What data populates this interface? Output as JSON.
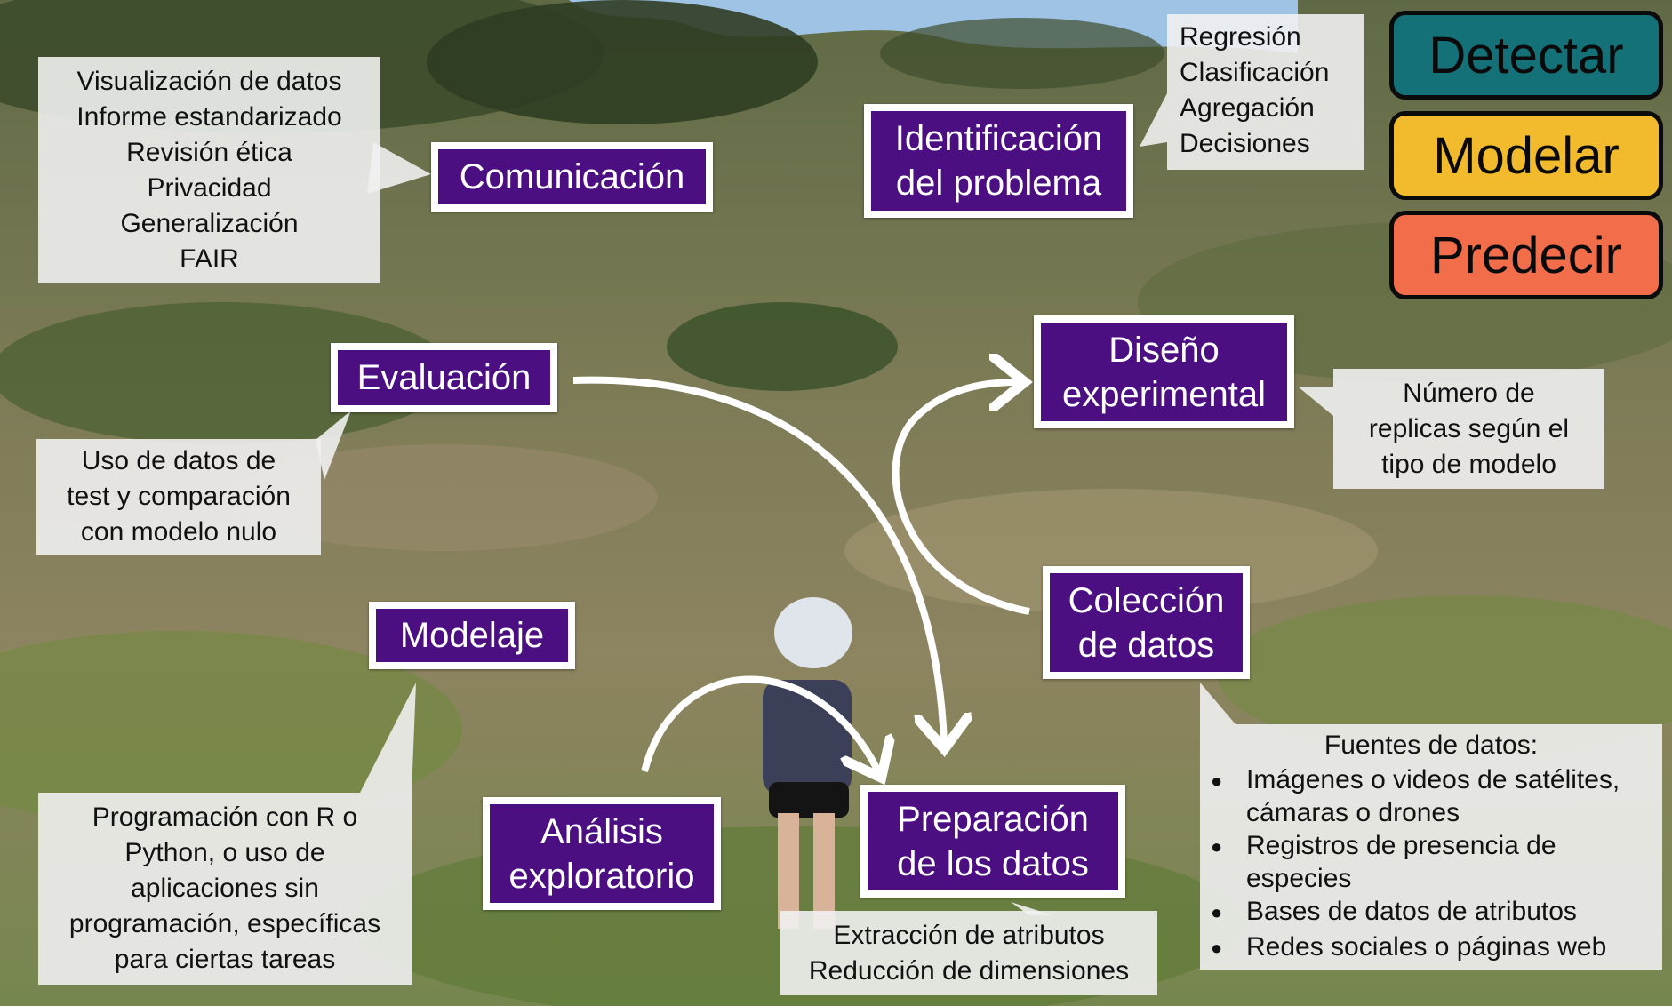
{
  "colors": {
    "step_bg": "#4b0f82",
    "step_border": "#ffffff",
    "note_bg": "#f0f0f0",
    "detect": "#137177",
    "model": "#f2bb2e",
    "predict": "#f26e4b"
  },
  "legend": {
    "detect": "Detectar",
    "model": "Modelar",
    "predict": "Predecir"
  },
  "steps": {
    "comunicacion": "Comunicación",
    "identificacion": "Identificación\ndel problema",
    "evaluacion": "Evaluación",
    "diseno": "Diseño\nexperimental",
    "coleccion": "Colección\nde datos",
    "modelaje": "Modelaje",
    "analisis": "Análisis\nexploratorio",
    "preparacion": "Preparación\nde los datos"
  },
  "notes": {
    "comunicacion": [
      "Visualización de datos",
      "Informe estandarizado",
      "Revisión ética",
      "Privacidad",
      "Generalización",
      "FAIR"
    ],
    "identificacion": [
      "Regresión",
      "Clasificación",
      "Agregación",
      "Decisiones"
    ],
    "evaluacion": [
      "Uso de datos de",
      "test y comparación",
      "con modelo nulo"
    ],
    "diseno": [
      "Número de",
      "replicas según el",
      "tipo de modelo"
    ],
    "modelaje": [
      "Programación con R o",
      "Python, o uso de",
      "aplicaciones sin",
      "programación, específicas",
      "para ciertas tareas"
    ],
    "preparacion": [
      "Extracción de atributos",
      "Reducción de dimensiones"
    ],
    "fuentes": {
      "title": "Fuentes de datos:",
      "bullet_icon": "skull-bullet-icon",
      "items": [
        "Imágenes o videos de satélites,\ncámaras o drones",
        "Registros de presencia de\nespecies",
        "Bases de datos de atributos",
        "Redes sociales o páginas web"
      ]
    }
  }
}
